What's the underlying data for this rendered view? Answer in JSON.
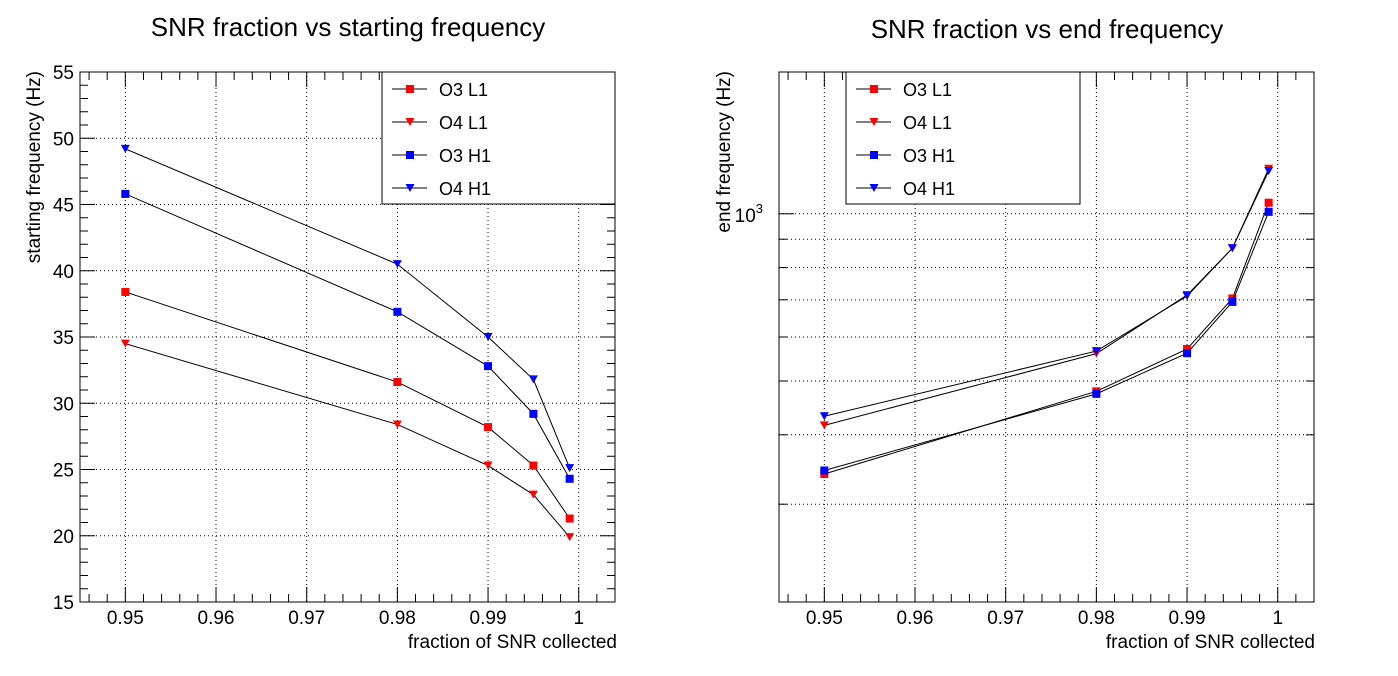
{
  "chart_data": [
    {
      "type": "line",
      "title": "SNR fraction vs starting frequency",
      "xlabel": "fraction of SNR collected",
      "ylabel": "starting frequency (Hz)",
      "xlim": [
        0.945,
        1.004
      ],
      "ylim": [
        15,
        55
      ],
      "yscale": "linear",
      "xticks": [
        "0.95",
        "0.96",
        "0.97",
        "0.98",
        "0.99",
        "1"
      ],
      "yticks": [
        "15",
        "20",
        "25",
        "30",
        "35",
        "40",
        "45",
        "50",
        "55"
      ],
      "grid": true,
      "legend_position": "top-right",
      "x": [
        0.95,
        0.98,
        0.99,
        0.995,
        0.999
      ],
      "series": [
        {
          "name": "O3 L1",
          "marker": "square",
          "color": "#ff0000",
          "values": [
            38.4,
            31.6,
            28.2,
            25.3,
            21.3
          ]
        },
        {
          "name": "O4 L1",
          "marker": "triangle-down",
          "color": "#ff0000",
          "values": [
            34.5,
            28.4,
            25.3,
            23.1,
            19.9
          ]
        },
        {
          "name": "O3 H1",
          "marker": "square",
          "color": "#0000ff",
          "values": [
            45.8,
            36.9,
            32.8,
            29.2,
            24.3
          ]
        },
        {
          "name": "O4 H1",
          "marker": "triangle-down",
          "color": "#0000ff",
          "values": [
            49.2,
            40.5,
            35.0,
            31.8,
            25.1
          ]
        }
      ]
    },
    {
      "type": "line",
      "title": "SNR fraction vs end frequency",
      "xlabel": "fraction of SNR collected",
      "ylabel": "end frequency (Hz)",
      "xlim": [
        0.945,
        1.004
      ],
      "ylim": [
        200,
        1800
      ],
      "yscale": "log",
      "xticks": [
        "0.95",
        "0.96",
        "0.97",
        "0.98",
        "0.99",
        "1"
      ],
      "ytick_label": "10",
      "ytick_exponent": "3",
      "grid": true,
      "legend_position": "top-left",
      "x": [
        0.95,
        0.98,
        0.99,
        0.995,
        0.999
      ],
      "series": [
        {
          "name": "O3 L1",
          "marker": "square",
          "color": "#ff0000",
          "values": [
            340,
            479,
            571,
            704,
            1047
          ]
        },
        {
          "name": "O4 L1",
          "marker": "triangle-down",
          "color": "#ff0000",
          "values": [
            416,
            560,
            714,
            867,
            1205
          ]
        },
        {
          "name": "O3 H1",
          "marker": "square",
          "color": "#0000ff",
          "values": [
            345,
            474,
            561,
            694,
            1008
          ]
        },
        {
          "name": "O4 H1",
          "marker": "triangle-down",
          "color": "#0000ff",
          "values": [
            432,
            566,
            711,
            867,
            1194
          ]
        }
      ]
    }
  ]
}
